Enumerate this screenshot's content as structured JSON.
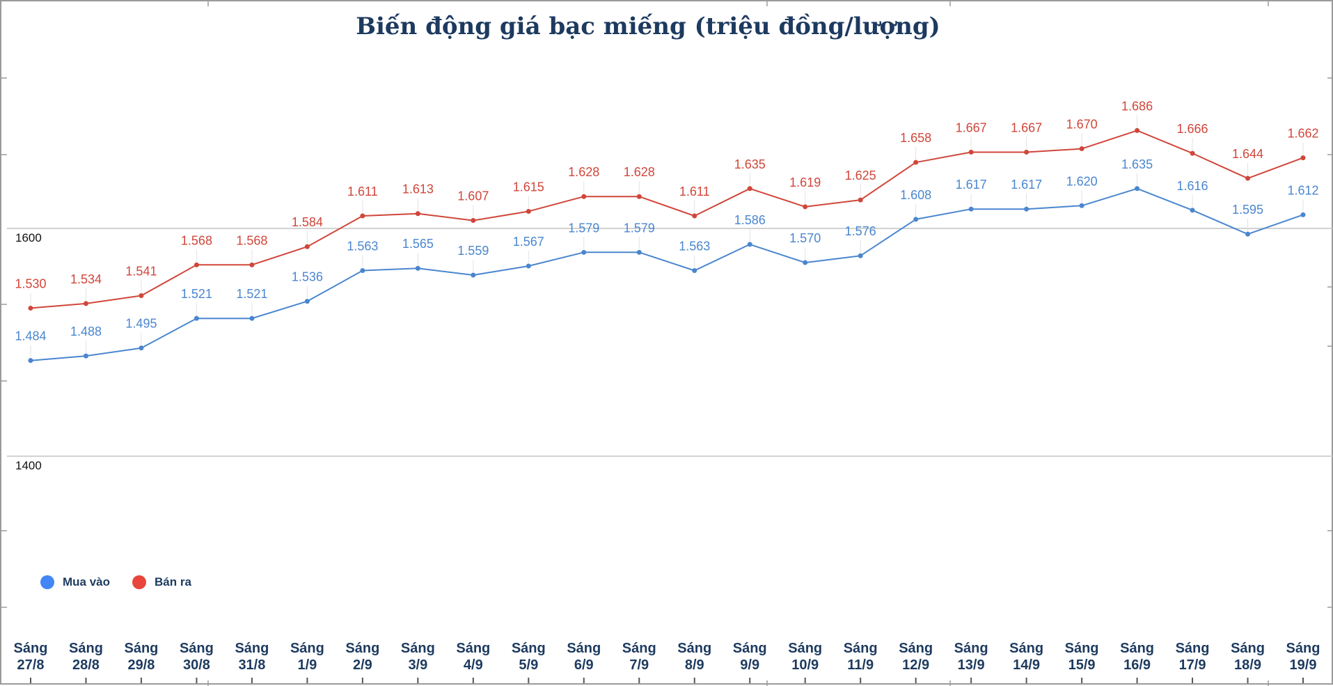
{
  "chart_data": {
    "type": "line",
    "title": "Biến động giá bạc miếng (triệu đồng/lượng)",
    "xlabel": "",
    "ylabel": "",
    "ylim": [
      1200,
      1780
    ],
    "y_ticks": [
      "1600",
      "1400"
    ],
    "grid": true,
    "legend_position": "bottom-left",
    "categories": [
      [
        "Sáng",
        "27/8"
      ],
      [
        "Sáng",
        "28/8"
      ],
      [
        "Sáng",
        "29/8"
      ],
      [
        "Sáng",
        "30/8"
      ],
      [
        "Sáng",
        "31/8"
      ],
      [
        "Sáng",
        "1/9"
      ],
      [
        "Sáng",
        "2/9"
      ],
      [
        "Sáng",
        "3/9"
      ],
      [
        "Sáng",
        "4/9"
      ],
      [
        "Sáng",
        "5/9"
      ],
      [
        "Sáng",
        "6/9"
      ],
      [
        "Sáng",
        "7/9"
      ],
      [
        "Sáng",
        "8/9"
      ],
      [
        "Sáng",
        "9/9"
      ],
      [
        "Sáng",
        "10/9"
      ],
      [
        "Sáng",
        "11/9"
      ],
      [
        "Sáng",
        "12/9"
      ],
      [
        "Sáng",
        "13/9"
      ],
      [
        "Sáng",
        "14/9"
      ],
      [
        "Sáng",
        "15/9"
      ],
      [
        "Sáng",
        "16/9"
      ],
      [
        "Sáng",
        "17/9"
      ],
      [
        "Sáng",
        "18/9"
      ],
      [
        "Sáng",
        "19/9"
      ]
    ],
    "series": [
      {
        "name": "Mua vào",
        "color": "#4a86cf",
        "dot_color": "#4285f4",
        "values": [
          1484,
          1488,
          1495,
          1521,
          1521,
          1536,
          1563,
          1565,
          1559,
          1567,
          1579,
          1579,
          1563,
          1586,
          1570,
          1576,
          1608,
          1617,
          1617,
          1620,
          1635,
          1616,
          1595,
          1612
        ],
        "labels": [
          "1.484",
          "1.488",
          "1.495",
          "1.521",
          "1.521",
          "1.536",
          "1.563",
          "1.565",
          "1.559",
          "1.567",
          "1.579",
          "1.579",
          "1.563",
          "1.586",
          "1.570",
          "1.576",
          "1.608",
          "1.617",
          "1.617",
          "1.620",
          "1.635",
          "1.616",
          "1.595",
          "1.612"
        ]
      },
      {
        "name": "Bán ra",
        "color": "#d0463a",
        "dot_color": "#e8453c",
        "values": [
          1530,
          1534,
          1541,
          1568,
          1568,
          1584,
          1611,
          1613,
          1607,
          1615,
          1628,
          1628,
          1611,
          1635,
          1619,
          1625,
          1658,
          1667,
          1667,
          1670,
          1686,
          1666,
          1644,
          1662
        ],
        "labels": [
          "1.530",
          "1.534",
          "1.541",
          "1.568",
          "1.568",
          "1.584",
          "1.611",
          "1.613",
          "1.607",
          "1.615",
          "1.628",
          "1.628",
          "1.611",
          "1.635",
          "1.619",
          "1.625",
          "1.658",
          "1.667",
          "1.667",
          "1.670",
          "1.686",
          "1.666",
          "1.644",
          "1.662"
        ]
      }
    ]
  }
}
